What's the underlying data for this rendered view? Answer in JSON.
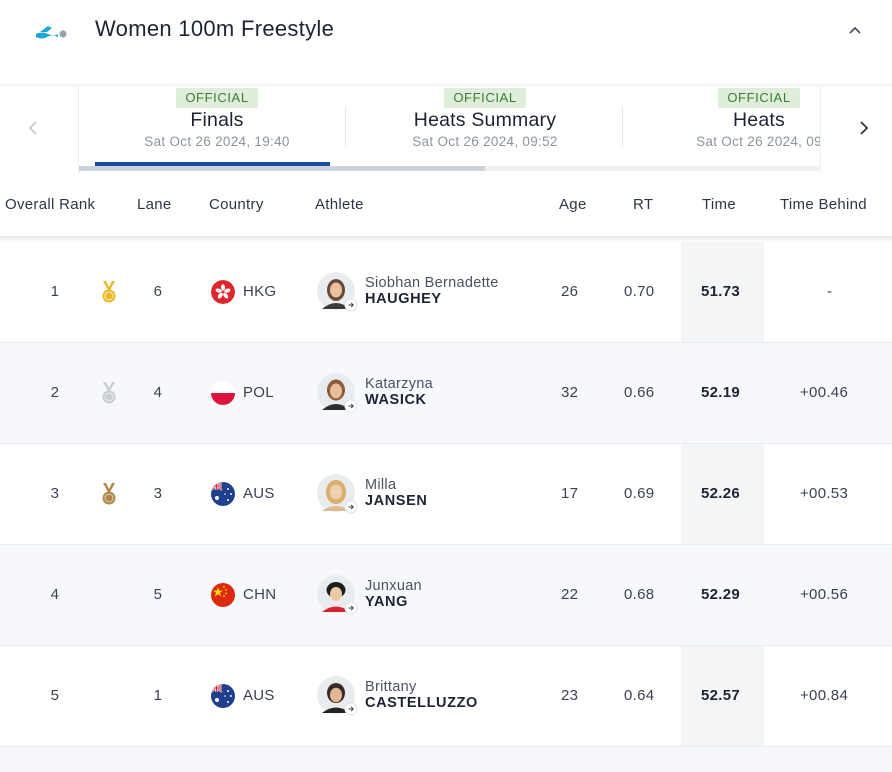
{
  "header": {
    "title": "Women 100m Freestyle",
    "logo_icon": "swimmer-logo-icon",
    "collapse_icon": "chevron-up-icon"
  },
  "tabs": [
    {
      "badge": "OFFICIAL",
      "name": "Finals",
      "date": "Sat Oct 26 2024, 19:40",
      "selected": true
    },
    {
      "badge": "OFFICIAL",
      "name": "Heats Summary",
      "date": "Sat Oct 26 2024, 09:52",
      "selected": false
    },
    {
      "badge": "OFFICIAL",
      "name": "Heats",
      "date": "Sat Oct 26 2024, 09",
      "selected": false
    }
  ],
  "columns": {
    "rank": "Overall Rank",
    "lane": "Lane",
    "country": "Country",
    "athlete": "Athlete",
    "age": "Age",
    "rt": "RT",
    "time": "Time",
    "behind": "Time Behind"
  },
  "rows": [
    {
      "rank": "1",
      "medal": "gold",
      "lane": "6",
      "country": "HKG",
      "flag": "hong-kong-flag-icon",
      "first": "Siobhan Bernadette",
      "last": "HAUGHEY",
      "age": "26",
      "rt": "0.70",
      "time": "51.73",
      "behind": "-"
    },
    {
      "rank": "2",
      "medal": "silver",
      "lane": "4",
      "country": "POL",
      "flag": "poland-flag-icon",
      "first": "Katarzyna",
      "last": "WASICK",
      "age": "32",
      "rt": "0.66",
      "time": "52.19",
      "behind": "+00.46"
    },
    {
      "rank": "3",
      "medal": "bronze",
      "lane": "3",
      "country": "AUS",
      "flag": "australia-flag-icon",
      "first": "Milla",
      "last": "JANSEN",
      "age": "17",
      "rt": "0.69",
      "time": "52.26",
      "behind": "+00.53"
    },
    {
      "rank": "4",
      "medal": "",
      "lane": "5",
      "country": "CHN",
      "flag": "china-flag-icon",
      "first": "Junxuan",
      "last": "YANG",
      "age": "22",
      "rt": "0.68",
      "time": "52.29",
      "behind": "+00.56"
    },
    {
      "rank": "5",
      "medal": "",
      "lane": "1",
      "country": "AUS",
      "flag": "australia-flag-icon",
      "first": "Brittany",
      "last": "CASTELLUZZO",
      "age": "23",
      "rt": "0.64",
      "time": "52.57",
      "behind": "+00.84"
    }
  ],
  "colors": {
    "accent": "#1a4e9c",
    "official_bg": "#dfeeda",
    "official_text": "#3b7d36",
    "gold": "#e8b72a",
    "silver": "#c9ccd0",
    "bronze": "#b0894a"
  }
}
